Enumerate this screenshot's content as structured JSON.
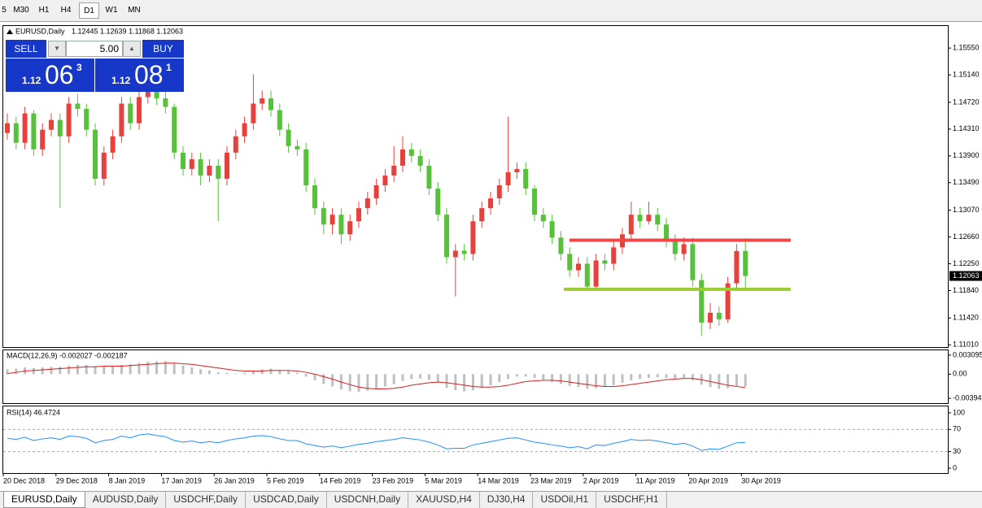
{
  "toolbar": {
    "timeframes": [
      "5",
      "M30",
      "H1",
      "H4",
      "D1",
      "W1",
      "MN"
    ],
    "active": 4
  },
  "trade_panel": {
    "sell": "SELL",
    "buy": "BUY",
    "lot": "5.00",
    "sell_price": {
      "prefix": "1.12",
      "big": "06",
      "small": "3"
    },
    "buy_price": {
      "prefix": "1.12",
      "big": "08",
      "small": "1"
    }
  },
  "chart_data": [
    {
      "type": "candlestick",
      "title": "EURUSD,Daily",
      "subtitle": "1.12445 1.12639 1.11868 1.12063",
      "categories": [
        "20 Dec 2018",
        null,
        null,
        null,
        null,
        null,
        "29 Dec 2018",
        null,
        null,
        null,
        null,
        null,
        "8 Jan 2019",
        null,
        null,
        null,
        null,
        null,
        "17 Jan 2019",
        null,
        null,
        null,
        null,
        null,
        "26 Jan 2019",
        null,
        null,
        null,
        null,
        null,
        "5 Feb 2019",
        null,
        null,
        null,
        null,
        null,
        "14 Feb 2019",
        null,
        null,
        null,
        null,
        null,
        "23 Feb 2019",
        null,
        null,
        null,
        null,
        null,
        "5 Mar 2019",
        null,
        null,
        null,
        null,
        null,
        "14 Mar 2019",
        null,
        null,
        null,
        null,
        null,
        "23 Mar 2019",
        null,
        null,
        null,
        null,
        null,
        "2 Apr 2019",
        null,
        null,
        null,
        null,
        null,
        "11 Apr 2019",
        null,
        null,
        null,
        null,
        null,
        "20 Apr 2019",
        null,
        null,
        null,
        null,
        null,
        "30 Apr 2019"
      ],
      "open": [
        1.1425,
        1.144,
        1.141,
        1.1455,
        1.14,
        1.143,
        1.1445,
        1.142,
        1.147,
        1.1462,
        1.143,
        1.1355,
        1.1395,
        1.142,
        1.147,
        1.144,
        1.148,
        1.15,
        1.1478,
        1.1465,
        1.1395,
        1.137,
        1.1385,
        1.136,
        1.1375,
        1.1355,
        1.1395,
        1.142,
        1.144,
        1.147,
        1.1478,
        1.146,
        1.143,
        1.1405,
        1.14,
        1.1345,
        1.131,
        1.1285,
        1.13,
        1.127,
        1.129,
        1.131,
        1.1325,
        1.1345,
        1.136,
        1.1375,
        1.14,
        1.139,
        1.1375,
        1.134,
        1.13,
        1.1235,
        1.1245,
        1.124,
        1.129,
        1.131,
        1.1325,
        1.1345,
        1.1365,
        1.137,
        1.134,
        1.13,
        1.129,
        1.1265,
        1.124,
        1.1215,
        1.1225,
        1.119,
        1.123,
        1.1225,
        1.125,
        1.127,
        1.13,
        1.129,
        1.13,
        1.1285,
        1.126,
        1.124,
        1.1255,
        1.12,
        1.1135,
        1.115,
        1.114,
        1.1195,
        1.12445
      ],
      "high": [
        1.1455,
        1.145,
        1.1465,
        1.146,
        1.144,
        1.1455,
        1.1455,
        1.148,
        1.1485,
        1.147,
        1.144,
        1.1405,
        1.143,
        1.148,
        1.148,
        1.149,
        1.151,
        1.151,
        1.149,
        1.147,
        1.1405,
        1.1395,
        1.1395,
        1.1385,
        1.1385,
        1.1405,
        1.143,
        1.145,
        1.1515,
        1.149,
        1.149,
        1.147,
        1.144,
        1.1415,
        1.141,
        1.1355,
        1.132,
        1.131,
        1.131,
        1.13,
        1.132,
        1.1335,
        1.1355,
        1.137,
        1.1405,
        1.142,
        1.141,
        1.14,
        1.1385,
        1.135,
        1.131,
        1.1255,
        1.1255,
        1.13,
        1.132,
        1.1335,
        1.1355,
        1.145,
        1.138,
        1.138,
        1.1345,
        1.131,
        1.13,
        1.1275,
        1.125,
        1.1235,
        1.1235,
        1.124,
        1.124,
        1.126,
        1.128,
        1.132,
        1.131,
        1.132,
        1.131,
        1.1295,
        1.127,
        1.1265,
        1.1265,
        1.121,
        1.1165,
        1.116,
        1.1205,
        1.1255,
        1.12639
      ],
      "low": [
        1.1415,
        1.14,
        1.14,
        1.139,
        1.139,
        1.142,
        1.131,
        1.141,
        1.145,
        1.142,
        1.1345,
        1.1345,
        1.1385,
        1.141,
        1.143,
        1.143,
        1.147,
        1.1468,
        1.1455,
        1.1385,
        1.136,
        1.136,
        1.1345,
        1.135,
        1.129,
        1.1345,
        1.1385,
        1.141,
        1.143,
        1.146,
        1.145,
        1.142,
        1.1395,
        1.139,
        1.1335,
        1.13,
        1.127,
        1.127,
        1.1255,
        1.126,
        1.128,
        1.13,
        1.1315,
        1.1335,
        1.135,
        1.1365,
        1.138,
        1.1365,
        1.133,
        1.129,
        1.1225,
        1.1175,
        1.123,
        1.123,
        1.128,
        1.13,
        1.1315,
        1.1335,
        1.1355,
        1.133,
        1.129,
        1.128,
        1.1255,
        1.123,
        1.1205,
        1.1205,
        1.1185,
        1.1185,
        1.1215,
        1.1215,
        1.124,
        1.126,
        1.128,
        1.1285,
        1.1275,
        1.125,
        1.123,
        1.123,
        1.119,
        1.1115,
        1.1125,
        1.113,
        1.1135,
        1.1185,
        1.11868
      ],
      "close": [
        1.144,
        1.141,
        1.1455,
        1.14,
        1.143,
        1.1445,
        1.142,
        1.147,
        1.1462,
        1.143,
        1.1355,
        1.1395,
        1.142,
        1.147,
        1.144,
        1.148,
        1.15,
        1.1478,
        1.1465,
        1.1395,
        1.137,
        1.1385,
        1.136,
        1.1375,
        1.1355,
        1.1395,
        1.142,
        1.144,
        1.147,
        1.1478,
        1.146,
        1.143,
        1.1405,
        1.14,
        1.1345,
        1.131,
        1.1285,
        1.13,
        1.127,
        1.129,
        1.131,
        1.1325,
        1.1345,
        1.136,
        1.1375,
        1.14,
        1.139,
        1.1375,
        1.134,
        1.13,
        1.1235,
        1.1245,
        1.124,
        1.129,
        1.131,
        1.1325,
        1.1345,
        1.1365,
        1.137,
        1.134,
        1.13,
        1.129,
        1.1265,
        1.124,
        1.1215,
        1.1225,
        1.119,
        1.123,
        1.1225,
        1.125,
        1.127,
        1.13,
        1.129,
        1.13,
        1.1285,
        1.126,
        1.124,
        1.1255,
        1.12,
        1.1135,
        1.115,
        1.114,
        1.1195,
        1.12445,
        1.12063
      ],
      "up_color": "#e8413c",
      "down_color": "#56c23a",
      "ylim": [
        1.10975,
        1.159
      ],
      "yticks": [
        {
          "value": 1.1555,
          "label": "1.15550"
        },
        {
          "value": 1.1514,
          "label": "1.15140"
        },
        {
          "value": 1.1472,
          "label": "1.14720"
        },
        {
          "value": 1.1431,
          "label": "1.14310"
        },
        {
          "value": 1.139,
          "label": "1.13900"
        },
        {
          "value": 1.1349,
          "label": "1.13490"
        },
        {
          "value": 1.1307,
          "label": "1.13070"
        },
        {
          "value": 1.1266,
          "label": "1.12660"
        },
        {
          "value": 1.1225,
          "label": "1.12250"
        },
        {
          "value": 1.1184,
          "label": "1.11840"
        },
        {
          "value": 1.1142,
          "label": "1.11420"
        },
        {
          "value": 1.1101,
          "label": "1.11010"
        }
      ],
      "last_price": {
        "value": 1.12063,
        "label": "1.12063"
      },
      "hlines": [
        {
          "value": 1.1261,
          "color": "#f04848"
        },
        {
          "value": 1.1186,
          "color": "#9acd32"
        }
      ]
    },
    {
      "type": "bar",
      "title": "MACD(12,26,9) -0.002027 -0.002187",
      "values": [
        0.0008,
        0.0009,
        0.0011,
        0.001,
        0.0011,
        0.0012,
        0.0012,
        0.0014,
        0.0015,
        0.0015,
        0.0013,
        0.0013,
        0.0013,
        0.0015,
        0.0016,
        0.0018,
        0.002,
        0.0021,
        0.0021,
        0.0018,
        0.0014,
        0.0011,
        0.0008,
        0.0006,
        0.0003,
        0.0002,
        0.0001,
        0.0002,
        0.0005,
        0.0008,
        0.0009,
        0.0007,
        0.0005,
        0.0002,
        -0.0004,
        -0.001,
        -0.0016,
        -0.002,
        -0.0025,
        -0.0028,
        -0.0029,
        -0.0027,
        -0.0024,
        -0.002,
        -0.0016,
        -0.0011,
        -0.0008,
        -0.0007,
        -0.0009,
        -0.0014,
        -0.0022,
        -0.0026,
        -0.0028,
        -0.0026,
        -0.0022,
        -0.0018,
        -0.0013,
        -0.0008,
        -0.0004,
        -0.0004,
        -0.0006,
        -0.0009,
        -0.0013,
        -0.0016,
        -0.0019,
        -0.0021,
        -0.0024,
        -0.0023,
        -0.0021,
        -0.0018,
        -0.0014,
        -0.001,
        -0.0008,
        -0.0006,
        -0.0005,
        -0.0006,
        -0.0007,
        -0.0006,
        -0.001,
        -0.0017,
        -0.0021,
        -0.0024,
        -0.0023,
        -0.002,
        -0.002027
      ],
      "color": "#c0c0c0",
      "signal": [
        0.0001,
        0.0003,
        0.0005,
        0.0006,
        0.0007,
        0.0008,
        0.0009,
        0.001,
        0.0011,
        0.0012,
        0.0012,
        0.0013,
        0.0013,
        0.0013,
        0.0014,
        0.0015,
        0.0016,
        0.0017,
        0.0018,
        0.0018,
        0.0017,
        0.0016,
        0.0014,
        0.0012,
        0.001,
        0.0008,
        0.0006,
        0.0005,
        0.0005,
        0.0005,
        0.0006,
        0.0006,
        0.0006,
        0.0005,
        0.0003,
        0.0,
        -0.0004,
        -0.0008,
        -0.0013,
        -0.0017,
        -0.0021,
        -0.0023,
        -0.0024,
        -0.0024,
        -0.0023,
        -0.0021,
        -0.0018,
        -0.0016,
        -0.0014,
        -0.0013,
        -0.0014,
        -0.0016,
        -0.0018,
        -0.002,
        -0.0021,
        -0.0021,
        -0.002,
        -0.0018,
        -0.0015,
        -0.0012,
        -0.0011,
        -0.001,
        -0.001,
        -0.0011,
        -0.0013,
        -0.0015,
        -0.0017,
        -0.0019,
        -0.002,
        -0.002,
        -0.0019,
        -0.0017,
        -0.0015,
        -0.0013,
        -0.0011,
        -0.0009,
        -0.0008,
        -0.0007,
        -0.0007,
        -0.0009,
        -0.0012,
        -0.0015,
        -0.0018,
        -0.002,
        -0.002187
      ],
      "signal_color": "#d42020",
      "ylim": [
        -0.00472,
        0.00388
      ],
      "yticks": [
        0.003095,
        {
          "value": 0,
          "label": "0.00"
        },
        -0.00394
      ]
    },
    {
      "type": "line",
      "title": "RSI(14) 46.4724",
      "values": [
        54,
        52,
        56,
        50,
        53,
        55,
        52,
        58,
        57,
        54,
        46,
        50,
        52,
        58,
        55,
        60,
        62,
        59,
        57,
        50,
        47,
        49,
        46,
        48,
        46,
        50,
        53,
        55,
        58,
        59,
        57,
        53,
        50,
        50,
        44,
        41,
        38,
        40,
        37,
        40,
        43,
        45,
        48,
        50,
        52,
        55,
        53,
        51,
        47,
        42,
        35,
        36,
        36,
        42,
        45,
        48,
        51,
        54,
        55,
        51,
        47,
        45,
        42,
        40,
        37,
        39,
        35,
        42,
        41,
        45,
        48,
        52,
        50,
        51,
        49,
        46,
        43,
        45,
        40,
        32,
        35,
        34,
        40,
        46,
        46.4724
      ],
      "color": "#1e90ff",
      "ylim": [
        -8.7,
        111.6
      ],
      "yticks": [
        0,
        30,
        70,
        100
      ]
    }
  ],
  "tabs": [
    "EURUSD,Daily",
    "AUDUSD,Daily",
    "USDCHF,Daily",
    "USDCAD,Daily",
    "USDCNH,Daily",
    "XAUUSD,H4",
    "DJ30,H4",
    "USDOil,H1",
    "USDCHF,H1"
  ],
  "active_tab": 0
}
